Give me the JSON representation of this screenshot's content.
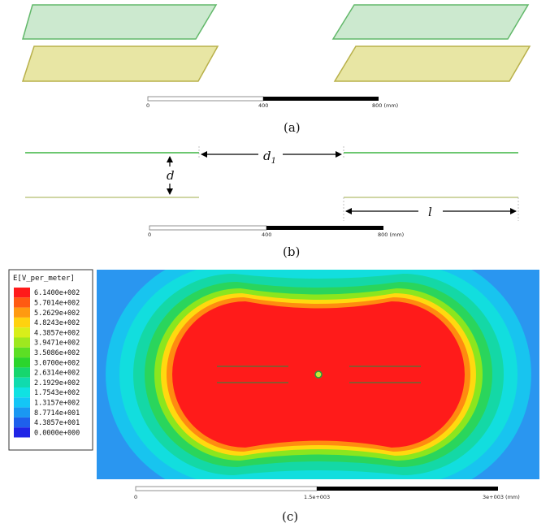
{
  "panel_a": {
    "caption": "(a)",
    "scale": {
      "tick_0": "0",
      "tick_1": "400",
      "tick_2": "800 (mm)"
    },
    "colors": {
      "upper_plate": "#cce9cf",
      "lower_plate": "#e8e6a4",
      "upper_edge": "#62b86a",
      "lower_edge": "#b8b04a"
    }
  },
  "panel_b": {
    "caption": "(b)",
    "labels": {
      "gap": "d",
      "separation_main": "d",
      "separation_sub": "1",
      "length": "l"
    },
    "scale": {
      "tick_0": "0",
      "tick_1": "400",
      "tick_2": "800 (mm)"
    },
    "colors": {
      "upper_line": "#6cc770",
      "lower_line": "#cfd6a4"
    }
  },
  "panel_c": {
    "caption": "(c)",
    "legend": {
      "title": "E[V_per_meter]",
      "entries": [
        {
          "label": "6.1400e+002",
          "color": "#ff1a1a"
        },
        {
          "label": "5.7014e+002",
          "color": "#ff5a12"
        },
        {
          "label": "5.2629e+002",
          "color": "#ff9a10"
        },
        {
          "label": "4.8243e+002",
          "color": "#ffd20f"
        },
        {
          "label": "4.3857e+002",
          "color": "#d8ee1a"
        },
        {
          "label": "3.9471e+002",
          "color": "#9ee81f"
        },
        {
          "label": "3.5086e+002",
          "color": "#5cdf24"
        },
        {
          "label": "3.0700e+002",
          "color": "#2bd52c"
        },
        {
          "label": "2.6314e+002",
          "color": "#16d66e"
        },
        {
          "label": "2.1929e+002",
          "color": "#10dbae"
        },
        {
          "label": "1.7543e+002",
          "color": "#10e2e2"
        },
        {
          "label": "1.3157e+002",
          "color": "#14c6f6"
        },
        {
          "label": "8.7714e+001",
          "color": "#1a98f2"
        },
        {
          "label": "4.3857e+001",
          "color": "#1e60ec"
        },
        {
          "label": "0.0000e+000",
          "color": "#1f24e6"
        }
      ]
    },
    "field_colors": [
      "#2a96f0",
      "#18c4ef",
      "#12dede",
      "#14d8a6",
      "#2ad55c",
      "#8be61e",
      "#ffd90f",
      "#ff8b10",
      "#ff1b1a"
    ],
    "scale": {
      "tick_0": "0",
      "tick_1": "1.5e+003",
      "tick_2": "3e+003 (mm)"
    }
  }
}
